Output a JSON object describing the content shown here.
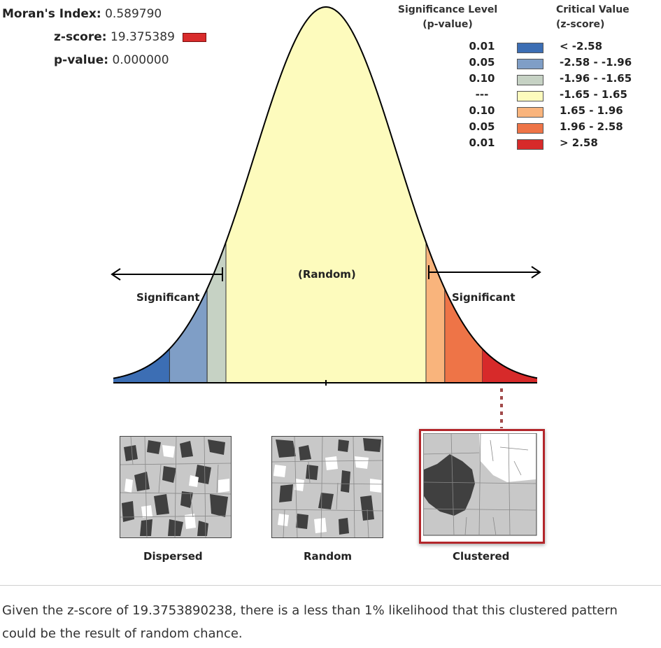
{
  "stats": {
    "moran_label": "Moran's Index:",
    "moran_value": "0.589790",
    "z_label": "z-score:",
    "z_value": "19.375389",
    "p_label": "p-value:",
    "p_value": "0.000000",
    "z_swatch_color": "#d92b2b"
  },
  "legend": {
    "sig_header_1": "Significance Level",
    "sig_header_2": "(p-value)",
    "crit_header_1": "Critical Value",
    "crit_header_2": "(z-score)",
    "rows": [
      {
        "p": "0.01",
        "z": "< -2.58",
        "color": "#3c6eb4"
      },
      {
        "p": "0.05",
        "z": "-2.58 - -1.96",
        "color": "#7f9ec6"
      },
      {
        "p": "0.10",
        "z": "-1.96 - -1.65",
        "color": "#c6d2c4"
      },
      {
        "p": "---",
        "z": "-1.65 - 1.65",
        "color": "#fdfbbd"
      },
      {
        "p": "0.10",
        "z": "1.65 - 1.96",
        "color": "#f9b47c"
      },
      {
        "p": "0.05",
        "z": "1.96 - 2.58",
        "color": "#ee7447"
      },
      {
        "p": "0.01",
        "z": "> 2.58",
        "color": "#d72a2a"
      }
    ]
  },
  "curve": {
    "random_label": "(Random)",
    "left_label": "Significant",
    "right_label": "Significant"
  },
  "thumbnails": {
    "dispersed": "Dispersed",
    "random": "Random",
    "clustered": "Clustered"
  },
  "message": "Given the z-score of 19.3753890238, there is a less than 1% likelihood that this clustered pattern could be the result of random chance."
}
